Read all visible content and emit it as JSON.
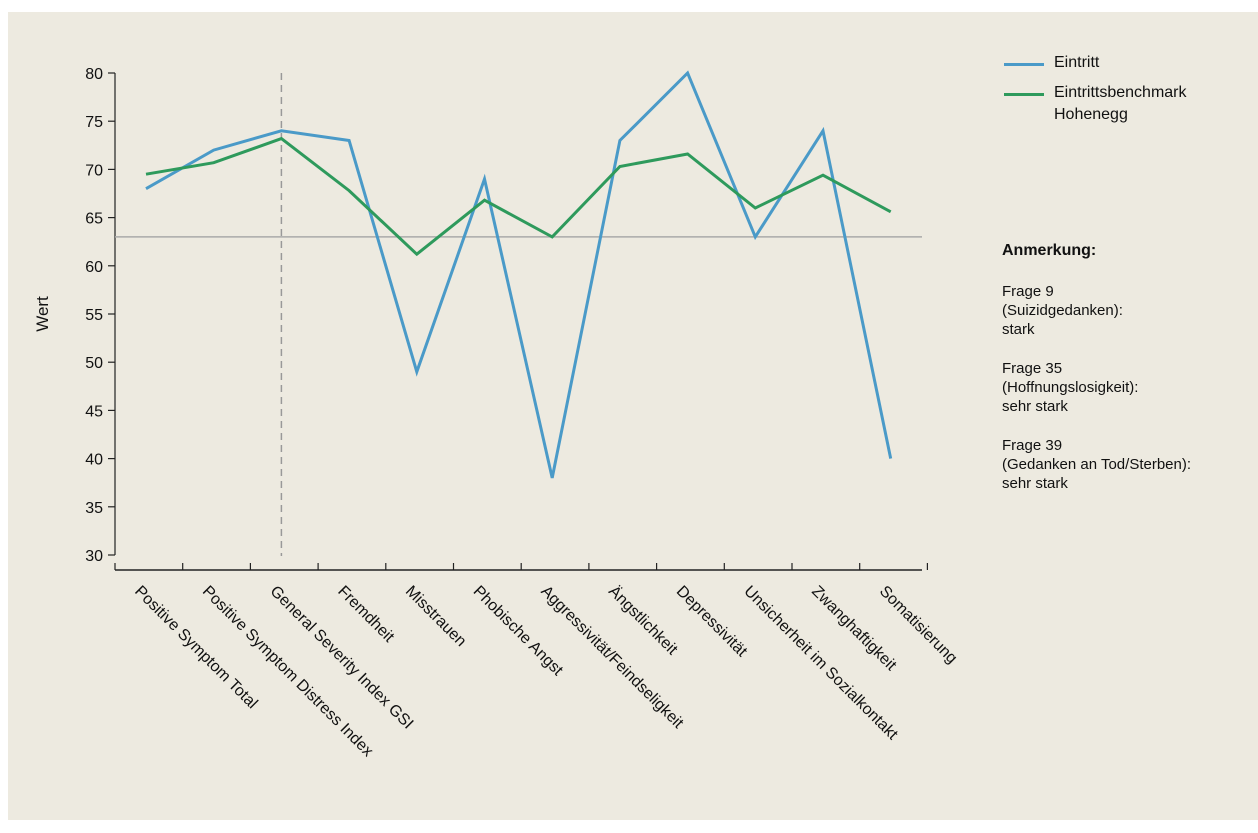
{
  "chart_data": {
    "type": "line",
    "title": "",
    "xlabel": "",
    "ylabel": "Wert",
    "ylim": [
      30,
      80
    ],
    "yticks": [
      30,
      35,
      40,
      45,
      50,
      55,
      60,
      65,
      70,
      75,
      80
    ],
    "categories": [
      "Positive Symptom Total",
      "Positive Symptom Distress Index",
      "General Severity Index GSI",
      "Fremdheit",
      "Misstrauen",
      "Phobische Angst",
      "Aggressivität/Feindseligkeit",
      "Ängstlichkeit",
      "Depressivität",
      "Unsicherheit im Sozialkontakt",
      "Zwanghaftigkeit",
      "Somatisierung"
    ],
    "series": [
      {
        "name": "Eintritt",
        "color": "#4a9ac8",
        "values": [
          68,
          72,
          74,
          73,
          49,
          69,
          38,
          73,
          80,
          63,
          74,
          40
        ]
      },
      {
        "name": "Eintrittsbenchmark Hohenegg",
        "color": "#2e9a5c",
        "values": [
          69.5,
          70.7,
          73.2,
          67.8,
          61.2,
          66.8,
          63,
          70.3,
          71.6,
          66,
          69.4,
          65.6
        ]
      }
    ],
    "reference_line": {
      "y": 63,
      "color": "#aaaaaa"
    },
    "marker_category": "General Severity Index GSI",
    "grid": false,
    "legend_position": "top-right"
  },
  "legend": {
    "items": [
      {
        "label": "Eintritt",
        "color": "#4a9ac8"
      },
      {
        "label": "Eintrittsbenchmark Hohenegg",
        "color": "#2e9a5c"
      }
    ]
  },
  "notes": {
    "title": "Anmerkung:",
    "items": [
      "Frage 9\n(Suizidgedanken):\nstark",
      "Frage 35\n(Hoffnungslosigkeit):\nsehr stark",
      "Frage 39\n(Gedanken an Tod/Sterben):\nsehr stark"
    ]
  }
}
